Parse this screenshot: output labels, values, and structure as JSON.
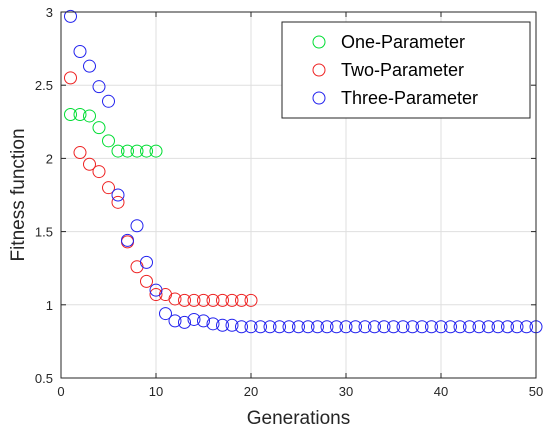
{
  "chart_data": {
    "type": "scatter",
    "title": "",
    "xlabel": "Generations",
    "ylabel": "Fitness function",
    "xlim": [
      0,
      50
    ],
    "ylim": [
      0.5,
      3
    ],
    "xticks": [
      0,
      10,
      20,
      30,
      40,
      50
    ],
    "yticks": [
      0.5,
      1,
      1.5,
      2,
      2.5,
      3
    ],
    "grid": true,
    "legend_position": "top-right",
    "marker": "open-circle",
    "series": [
      {
        "name": "One-Parameter",
        "color": "#00dd33",
        "x": [
          1,
          2,
          3,
          4,
          5,
          6,
          7,
          8,
          9,
          10
        ],
        "y": [
          2.3,
          2.3,
          2.29,
          2.21,
          2.12,
          2.05,
          2.05,
          2.05,
          2.05,
          2.05
        ]
      },
      {
        "name": "Two-Parameter",
        "color": "#ee2222",
        "x": [
          1,
          2,
          3,
          4,
          5,
          6,
          7,
          8,
          9,
          10,
          11,
          12,
          13,
          14,
          15,
          16,
          17,
          18,
          19,
          20
        ],
        "y": [
          2.55,
          2.04,
          1.96,
          1.91,
          1.8,
          1.7,
          1.43,
          1.26,
          1.16,
          1.07,
          1.07,
          1.04,
          1.03,
          1.03,
          1.03,
          1.03,
          1.03,
          1.03,
          1.03,
          1.03
        ]
      },
      {
        "name": "Three-Parameter",
        "color": "#2222ee",
        "x": [
          1,
          2,
          3,
          4,
          5,
          6,
          7,
          8,
          9,
          10,
          11,
          12,
          13,
          14,
          15,
          16,
          17,
          18,
          19,
          20,
          21,
          22,
          23,
          24,
          25,
          26,
          27,
          28,
          29,
          30,
          31,
          32,
          33,
          34,
          35,
          36,
          37,
          38,
          39,
          40,
          41,
          42,
          43,
          44,
          45,
          46,
          47,
          48,
          49,
          50
        ],
        "y": [
          2.97,
          2.73,
          2.63,
          2.49,
          2.39,
          1.75,
          1.44,
          1.54,
          1.29,
          1.1,
          0.94,
          0.89,
          0.88,
          0.9,
          0.89,
          0.87,
          0.86,
          0.86,
          0.85,
          0.85,
          0.85,
          0.85,
          0.85,
          0.85,
          0.85,
          0.85,
          0.85,
          0.85,
          0.85,
          0.85,
          0.85,
          0.85,
          0.85,
          0.85,
          0.85,
          0.85,
          0.85,
          0.85,
          0.85,
          0.85,
          0.85,
          0.85,
          0.85,
          0.85,
          0.85,
          0.85,
          0.85,
          0.85,
          0.85,
          0.85
        ]
      }
    ]
  }
}
